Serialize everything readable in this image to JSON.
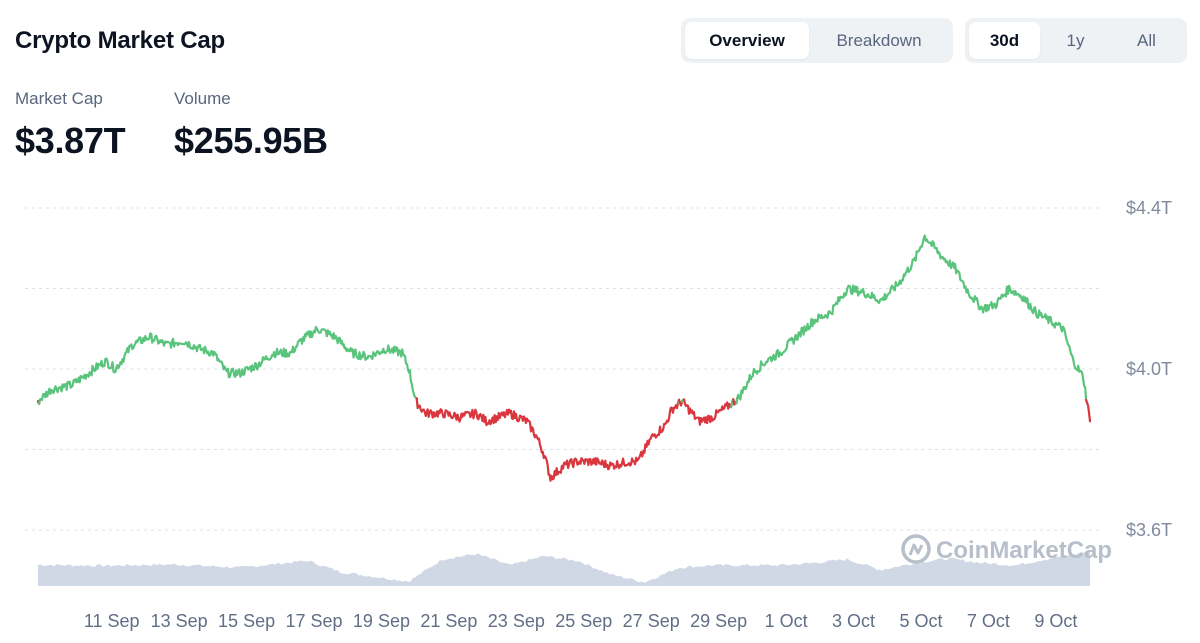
{
  "header": {
    "title": "Crypto Market Cap"
  },
  "view_tabs": [
    {
      "label": "Overview",
      "active": true
    },
    {
      "label": "Breakdown",
      "active": false
    }
  ],
  "range_tabs": [
    {
      "label": "30d",
      "active": true
    },
    {
      "label": "1y",
      "active": false
    },
    {
      "label": "All",
      "active": false
    }
  ],
  "stats": {
    "market_cap": {
      "label": "Market Cap",
      "value": "$3.87T"
    },
    "volume": {
      "label": "Volume",
      "value": "$255.95B"
    }
  },
  "watermark": {
    "text": "CoinMarketCap"
  },
  "colors": {
    "up": "#16c784",
    "up_line": "#5ac47d",
    "down": "#d9363e",
    "grid": "#dde1e6",
    "volume": "#cfd6e4"
  },
  "chart_data": {
    "type": "line",
    "title": "",
    "xlabel": "",
    "ylabel": "",
    "ylim": [
      3.5,
      4.45
    ],
    "y_ticks": [
      "$4.4T",
      "$4.0T",
      "$3.6T"
    ],
    "y_tick_values": [
      4.4,
      4.0,
      3.6
    ],
    "grid": true,
    "x_ticks": [
      "11 Sep",
      "13 Sep",
      "15 Sep",
      "17 Sep",
      "19 Sep",
      "21 Sep",
      "23 Sep",
      "25 Sep",
      "27 Sep",
      "29 Sep",
      "1 Oct",
      "3 Oct",
      "5 Oct",
      "7 Oct",
      "9 Oct"
    ],
    "x_tick_days": [
      1,
      3,
      5,
      7,
      9,
      11,
      13,
      15,
      17,
      19,
      21,
      23,
      25,
      27,
      29
    ],
    "baseline": 3.92,
    "series": [
      {
        "values_by_day": [
          [
            0.0,
            3.92
          ],
          [
            0.4,
            3.95
          ],
          [
            1.0,
            3.96
          ],
          [
            1.5,
            3.99
          ],
          [
            2.0,
            4.02
          ],
          [
            2.3,
            4.0
          ],
          [
            2.8,
            4.06
          ],
          [
            3.3,
            4.08
          ],
          [
            3.8,
            4.06
          ],
          [
            4.3,
            4.07
          ],
          [
            4.8,
            4.05
          ],
          [
            5.2,
            4.04
          ],
          [
            5.6,
            3.99
          ],
          [
            6.0,
            3.99
          ],
          [
            6.5,
            4.01
          ],
          [
            7.0,
            4.04
          ],
          [
            7.5,
            4.04
          ],
          [
            7.8,
            4.07
          ],
          [
            8.3,
            4.1
          ],
          [
            8.8,
            4.08
          ],
          [
            9.3,
            4.04
          ],
          [
            9.8,
            4.03
          ],
          [
            10.3,
            4.05
          ],
          [
            10.8,
            4.04
          ],
          [
            11.0,
            4.0
          ],
          [
            11.2,
            3.92
          ],
          [
            11.5,
            3.89
          ],
          [
            12.0,
            3.89
          ],
          [
            12.5,
            3.88
          ],
          [
            13.0,
            3.89
          ],
          [
            13.3,
            3.87
          ],
          [
            14.0,
            3.89
          ],
          [
            14.5,
            3.87
          ],
          [
            14.8,
            3.83
          ],
          [
            15.0,
            3.79
          ],
          [
            15.2,
            3.73
          ],
          [
            15.6,
            3.76
          ],
          [
            16.0,
            3.77
          ],
          [
            16.5,
            3.77
          ],
          [
            17.0,
            3.76
          ],
          [
            17.5,
            3.77
          ],
          [
            17.8,
            3.77
          ],
          [
            18.2,
            3.83
          ],
          [
            18.6,
            3.86
          ],
          [
            18.8,
            3.9
          ],
          [
            19.1,
            3.92
          ],
          [
            19.6,
            3.87
          ],
          [
            20.0,
            3.88
          ],
          [
            20.5,
            3.91
          ],
          [
            20.8,
            3.93
          ],
          [
            21.2,
            3.99
          ],
          [
            21.6,
            4.02
          ],
          [
            22.0,
            4.04
          ],
          [
            22.5,
            4.08
          ],
          [
            23.0,
            4.12
          ],
          [
            23.5,
            4.14
          ],
          [
            24.0,
            4.2
          ],
          [
            24.5,
            4.19
          ],
          [
            25.0,
            4.17
          ],
          [
            25.5,
            4.21
          ],
          [
            26.0,
            4.27
          ],
          [
            26.3,
            4.33
          ],
          [
            26.8,
            4.28
          ],
          [
            27.2,
            4.25
          ],
          [
            27.6,
            4.19
          ],
          [
            28.0,
            4.15
          ],
          [
            28.4,
            4.16
          ],
          [
            28.8,
            4.2
          ],
          [
            29.2,
            4.18
          ],
          [
            29.4,
            4.16
          ],
          [
            29.6,
            4.14
          ],
          [
            30.0,
            4.12
          ],
          [
            30.4,
            4.1
          ],
          [
            30.7,
            4.02
          ],
          [
            31.0,
            3.98
          ],
          [
            31.2,
            3.87
          ]
        ]
      }
    ],
    "volume_series": [
      [
        0.0,
        0.46
      ],
      [
        2.0,
        0.44
      ],
      [
        4.0,
        0.47
      ],
      [
        6.0,
        0.4
      ],
      [
        8.0,
        0.55
      ],
      [
        9.0,
        0.3
      ],
      [
        11.0,
        0.1
      ],
      [
        12.0,
        0.58
      ],
      [
        13.0,
        0.7
      ],
      [
        14.0,
        0.45
      ],
      [
        15.0,
        0.65
      ],
      [
        16.0,
        0.55
      ],
      [
        17.0,
        0.25
      ],
      [
        18.0,
        0.08
      ],
      [
        19.0,
        0.4
      ],
      [
        20.0,
        0.45
      ],
      [
        22.0,
        0.45
      ],
      [
        23.0,
        0.5
      ],
      [
        24.0,
        0.58
      ],
      [
        25.0,
        0.35
      ],
      [
        26.0,
        0.5
      ],
      [
        27.0,
        0.6
      ],
      [
        28.0,
        0.5
      ],
      [
        29.0,
        0.45
      ],
      [
        30.0,
        0.6
      ],
      [
        31.2,
        0.75
      ]
    ]
  }
}
